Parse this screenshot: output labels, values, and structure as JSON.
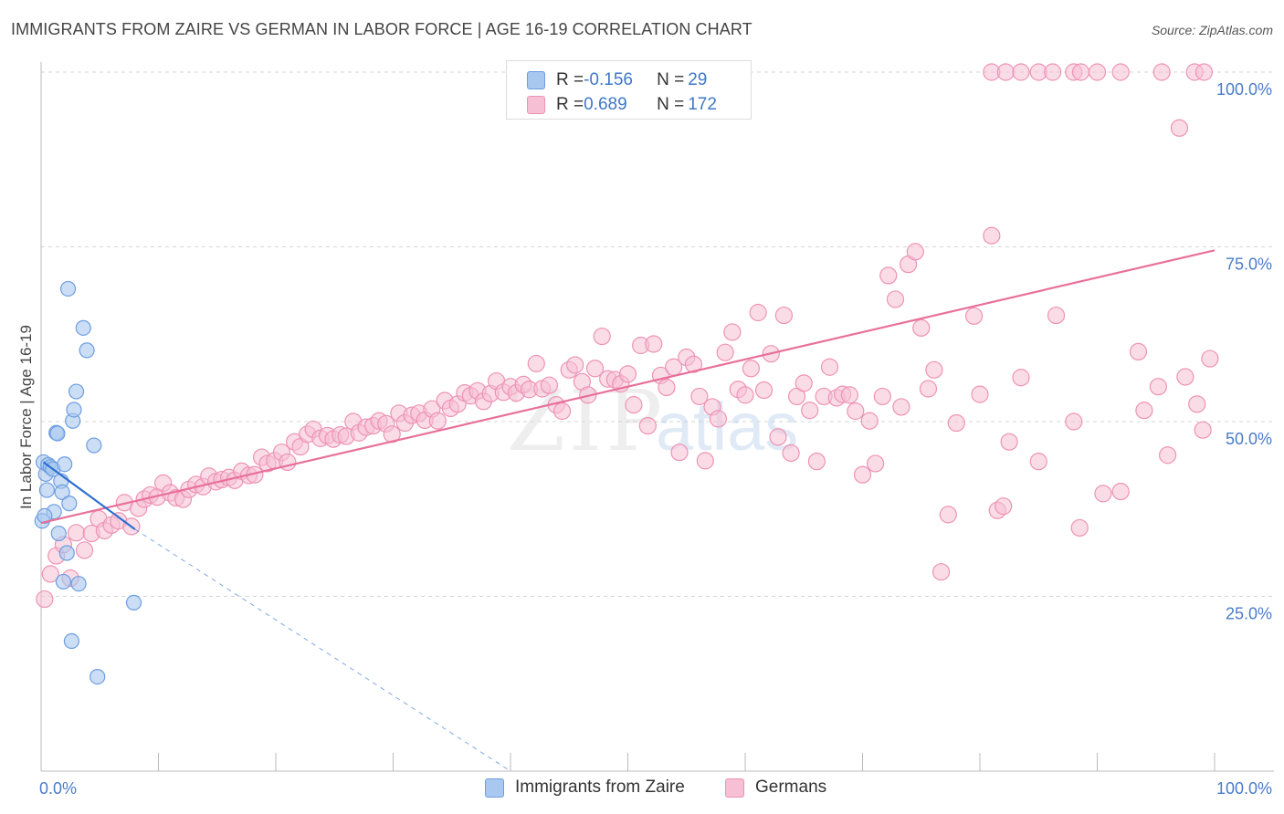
{
  "header": {
    "title": "IMMIGRANTS FROM ZAIRE VS GERMAN IN LABOR FORCE | AGE 16-19 CORRELATION CHART",
    "source": "Source: ZipAtlas.com"
  },
  "legend_top": {
    "rows": [
      {
        "r_label": "R = ",
        "r_value": "-0.156",
        "n_label": "N = ",
        "n_value": "29"
      },
      {
        "r_label": "R = ",
        "r_value": "0.689",
        "n_label": "N = ",
        "n_value": "172"
      }
    ]
  },
  "watermark": {
    "zip": "ZIP",
    "atlas": "atlas"
  },
  "colors": {
    "zaire_fill": "#a9c8f0",
    "zaire_stroke": "#6d9de0",
    "zaire_line": "#2b6fd1",
    "german_fill": "#f6bfd3",
    "german_stroke": "#ee93b3",
    "german_line": "#e8709a",
    "tick_text": "#4a7cc9",
    "grid": "#d5d5d5"
  },
  "chart_data": {
    "type": "scatter",
    "title": "IMMIGRANTS FROM ZAIRE VS GERMAN IN LABOR FORCE | AGE 16-19 CORRELATION CHART",
    "xlabel": "",
    "ylabel": "In Labor Force | Age 16-19",
    "xlim": [
      0,
      100
    ],
    "ylim": [
      0,
      100
    ],
    "x_tick_labels": [
      "0.0%",
      "100.0%"
    ],
    "y_ticks": [
      25,
      50,
      75,
      100
    ],
    "y_tick_labels": [
      "25.0%",
      "50.0%",
      "75.0%",
      "100.0%"
    ],
    "grid": true,
    "series": [
      {
        "name": "Immigrants from Zaire",
        "r": -0.156,
        "n": 29,
        "trend": {
          "x": [
            0.2,
            8.0
          ],
          "y": [
            44.2,
            34.6
          ],
          "dash_to_x": 40.0
        },
        "points": [
          [
            0.1,
            35.8
          ],
          [
            0.2,
            44.2
          ],
          [
            0.4,
            42.5
          ],
          [
            0.5,
            40.2
          ],
          [
            0.6,
            43.8
          ],
          [
            0.8,
            43.5
          ],
          [
            1.0,
            43.2
          ],
          [
            1.1,
            37.1
          ],
          [
            1.3,
            48.4
          ],
          [
            1.4,
            48.3
          ],
          [
            1.5,
            34.0
          ],
          [
            1.7,
            41.5
          ],
          [
            1.8,
            39.9
          ],
          [
            1.9,
            27.1
          ],
          [
            2.0,
            43.9
          ],
          [
            2.2,
            31.2
          ],
          [
            2.3,
            69.0
          ],
          [
            2.4,
            38.3
          ],
          [
            2.6,
            18.6
          ],
          [
            2.7,
            50.1
          ],
          [
            2.8,
            51.7
          ],
          [
            3.0,
            54.3
          ],
          [
            3.2,
            26.8
          ],
          [
            3.6,
            63.4
          ],
          [
            3.9,
            60.2
          ],
          [
            4.5,
            46.6
          ],
          [
            4.8,
            13.5
          ],
          [
            7.9,
            24.1
          ],
          [
            0.3,
            36.5
          ]
        ]
      },
      {
        "name": "Germans",
        "r": 0.689,
        "n": 172,
        "trend": {
          "x": [
            0,
            100
          ],
          "y": [
            35.5,
            74.5
          ]
        },
        "points": [
          [
            0.3,
            24.6
          ],
          [
            0.8,
            28.2
          ],
          [
            1.3,
            30.8
          ],
          [
            1.9,
            32.4
          ],
          [
            2.5,
            27.6
          ],
          [
            3.0,
            34.1
          ],
          [
            3.7,
            31.6
          ],
          [
            4.3,
            34.0
          ],
          [
            4.9,
            36.1
          ],
          [
            5.4,
            34.4
          ],
          [
            6.0,
            35.2
          ],
          [
            6.6,
            35.8
          ],
          [
            7.1,
            38.4
          ],
          [
            7.7,
            35.0
          ],
          [
            8.3,
            37.6
          ],
          [
            8.8,
            38.9
          ],
          [
            9.3,
            39.5
          ],
          [
            9.9,
            39.2
          ],
          [
            10.4,
            41.2
          ],
          [
            11.0,
            39.8
          ],
          [
            11.5,
            39.1
          ],
          [
            12.1,
            38.9
          ],
          [
            12.6,
            40.3
          ],
          [
            13.2,
            41.0
          ],
          [
            13.8,
            40.7
          ],
          [
            14.3,
            42.2
          ],
          [
            14.9,
            41.4
          ],
          [
            15.4,
            41.7
          ],
          [
            16.0,
            42.0
          ],
          [
            16.5,
            41.6
          ],
          [
            17.1,
            42.9
          ],
          [
            17.7,
            42.3
          ],
          [
            18.2,
            42.4
          ],
          [
            18.8,
            44.9
          ],
          [
            19.3,
            44.0
          ],
          [
            19.9,
            44.4
          ],
          [
            20.5,
            45.6
          ],
          [
            21.0,
            44.2
          ],
          [
            21.6,
            47.1
          ],
          [
            22.1,
            46.4
          ],
          [
            22.7,
            48.2
          ],
          [
            23.2,
            48.9
          ],
          [
            23.8,
            47.6
          ],
          [
            24.4,
            48.0
          ],
          [
            24.9,
            47.5
          ],
          [
            25.5,
            48.1
          ],
          [
            26.0,
            47.9
          ],
          [
            26.6,
            50.0
          ],
          [
            27.1,
            48.4
          ],
          [
            27.7,
            49.2
          ],
          [
            28.3,
            49.4
          ],
          [
            28.8,
            50.1
          ],
          [
            29.4,
            49.7
          ],
          [
            29.9,
            48.2
          ],
          [
            30.5,
            51.2
          ],
          [
            31.0,
            49.8
          ],
          [
            31.6,
            50.9
          ],
          [
            32.2,
            51.2
          ],
          [
            32.7,
            50.2
          ],
          [
            33.3,
            51.8
          ],
          [
            33.8,
            50.1
          ],
          [
            34.4,
            53.0
          ],
          [
            34.9,
            51.9
          ],
          [
            35.5,
            52.5
          ],
          [
            36.1,
            54.1
          ],
          [
            36.6,
            53.7
          ],
          [
            37.2,
            54.4
          ],
          [
            37.7,
            52.9
          ],
          [
            38.3,
            54.0
          ],
          [
            38.8,
            55.8
          ],
          [
            39.4,
            54.2
          ],
          [
            40.0,
            55.0
          ],
          [
            40.5,
            54.1
          ],
          [
            41.1,
            55.3
          ],
          [
            41.6,
            54.6
          ],
          [
            42.2,
            58.3
          ],
          [
            42.7,
            54.7
          ],
          [
            43.3,
            55.2
          ],
          [
            43.9,
            52.4
          ],
          [
            44.4,
            51.5
          ],
          [
            45.0,
            57.4
          ],
          [
            45.5,
            58.1
          ],
          [
            46.1,
            55.7
          ],
          [
            46.6,
            53.8
          ],
          [
            47.2,
            57.6
          ],
          [
            47.8,
            62.2
          ],
          [
            48.3,
            56.1
          ],
          [
            48.9,
            56.0
          ],
          [
            49.4,
            55.4
          ],
          [
            50.0,
            56.8
          ],
          [
            50.5,
            52.4
          ],
          [
            51.1,
            60.9
          ],
          [
            51.7,
            49.4
          ],
          [
            52.2,
            61.1
          ],
          [
            52.8,
            56.6
          ],
          [
            53.3,
            54.9
          ],
          [
            53.9,
            57.8
          ],
          [
            54.4,
            45.6
          ],
          [
            55.0,
            59.2
          ],
          [
            55.6,
            58.2
          ],
          [
            56.1,
            53.6
          ],
          [
            56.6,
            44.4
          ],
          [
            57.2,
            52.1
          ],
          [
            57.7,
            50.4
          ],
          [
            58.3,
            59.9
          ],
          [
            58.9,
            62.8
          ],
          [
            59.4,
            54.6
          ],
          [
            60.0,
            53.8
          ],
          [
            60.5,
            57.6
          ],
          [
            61.1,
            65.6
          ],
          [
            61.6,
            54.5
          ],
          [
            62.2,
            59.7
          ],
          [
            62.8,
            47.8
          ],
          [
            63.3,
            65.2
          ],
          [
            63.9,
            45.5
          ],
          [
            64.4,
            53.6
          ],
          [
            65.0,
            55.5
          ],
          [
            65.5,
            51.6
          ],
          [
            66.1,
            44.3
          ],
          [
            66.7,
            53.6
          ],
          [
            67.2,
            57.8
          ],
          [
            67.8,
            53.4
          ],
          [
            68.3,
            53.9
          ],
          [
            68.9,
            53.8
          ],
          [
            69.4,
            51.5
          ],
          [
            70.0,
            42.4
          ],
          [
            70.6,
            50.1
          ],
          [
            71.1,
            44.0
          ],
          [
            71.7,
            53.6
          ],
          [
            72.2,
            70.9
          ],
          [
            72.8,
            67.5
          ],
          [
            73.3,
            52.1
          ],
          [
            73.9,
            72.5
          ],
          [
            74.5,
            74.3
          ],
          [
            75.0,
            63.4
          ],
          [
            75.6,
            54.7
          ],
          [
            76.1,
            57.4
          ],
          [
            76.7,
            28.5
          ],
          [
            77.3,
            36.7
          ],
          [
            78.0,
            49.8
          ],
          [
            79.5,
            65.1
          ],
          [
            80.0,
            53.9
          ],
          [
            81.0,
            76.6
          ],
          [
            81.5,
            37.3
          ],
          [
            82.0,
            37.9
          ],
          [
            82.5,
            47.1
          ],
          [
            83.5,
            56.3
          ],
          [
            85.0,
            44.3
          ],
          [
            86.5,
            65.2
          ],
          [
            88.0,
            50.0
          ],
          [
            88.5,
            34.8
          ],
          [
            90.5,
            39.7
          ],
          [
            92.0,
            40.0
          ],
          [
            93.5,
            60.0
          ],
          [
            94.0,
            51.6
          ],
          [
            95.2,
            55.0
          ],
          [
            96.0,
            45.2
          ],
          [
            97.5,
            56.4
          ],
          [
            98.5,
            52.5
          ],
          [
            99.0,
            48.8
          ],
          [
            99.6,
            59.0
          ],
          [
            81.0,
            100.0
          ],
          [
            82.2,
            100.0
          ],
          [
            83.5,
            100.0
          ],
          [
            85.0,
            100.0
          ],
          [
            86.2,
            100.0
          ],
          [
            88.0,
            100.0
          ],
          [
            88.6,
            100.0
          ],
          [
            90.0,
            100.0
          ],
          [
            92.0,
            100.0
          ],
          [
            95.5,
            100.0
          ],
          [
            97.0,
            92.0
          ],
          [
            98.3,
            100.0
          ],
          [
            99.1,
            100.0
          ]
        ]
      }
    ]
  },
  "bottom_legend": {
    "items": [
      {
        "label": "Immigrants from Zaire"
      },
      {
        "label": "Germans"
      }
    ]
  }
}
